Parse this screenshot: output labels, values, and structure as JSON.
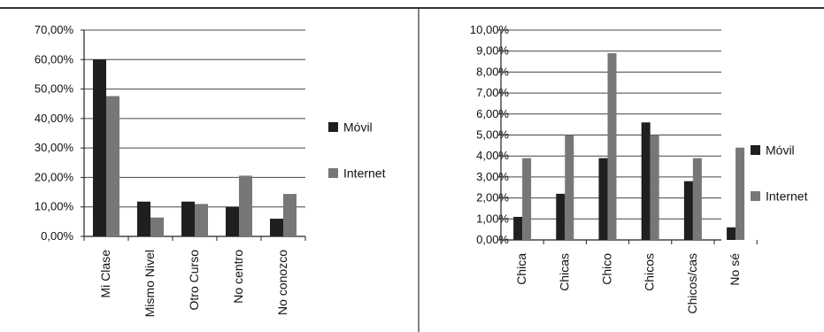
{
  "colors": {
    "series_a": "#1f1f1f",
    "series_b": "#777777",
    "axis": "#222222",
    "frame": "#333333"
  },
  "chart_data": [
    {
      "type": "bar",
      "categories": [
        "Mi Clase",
        "Mismo Nivel",
        "Otro Curso",
        "No centro",
        "No conozco"
      ],
      "series": [
        {
          "name": "Móvil",
          "values": [
            60.0,
            11.8,
            11.8,
            10.0,
            6.0
          ]
        },
        {
          "name": "Internet",
          "values": [
            47.6,
            6.4,
            11.0,
            20.6,
            14.4
          ]
        }
      ],
      "yticks": [
        "0,00%",
        "10,00%",
        "20,00%",
        "30,00%",
        "40,00%",
        "50,00%",
        "60,00%",
        "70,00%"
      ],
      "ylim": [
        0,
        70
      ],
      "grid": true,
      "legend_position": "right"
    },
    {
      "type": "bar",
      "categories": [
        "Chica",
        "Chicas",
        "Chico",
        "Chicos",
        "Chicos/cas",
        "No sé"
      ],
      "series": [
        {
          "name": "Móvil",
          "values": [
            1.1,
            2.2,
            3.9,
            5.6,
            2.8,
            0.6
          ]
        },
        {
          "name": "Internet",
          "values": [
            3.9,
            5.0,
            8.9,
            5.0,
            3.9,
            4.4
          ]
        }
      ],
      "yticks": [
        "0,00%",
        "1,00%",
        "2,00%",
        "3,00%",
        "4,00%",
        "5,00%",
        "6,00%",
        "7,00%",
        "8,00%",
        "9,00%",
        "10,00%"
      ],
      "ylim": [
        0,
        10
      ],
      "grid": true,
      "legend_position": "right"
    }
  ]
}
